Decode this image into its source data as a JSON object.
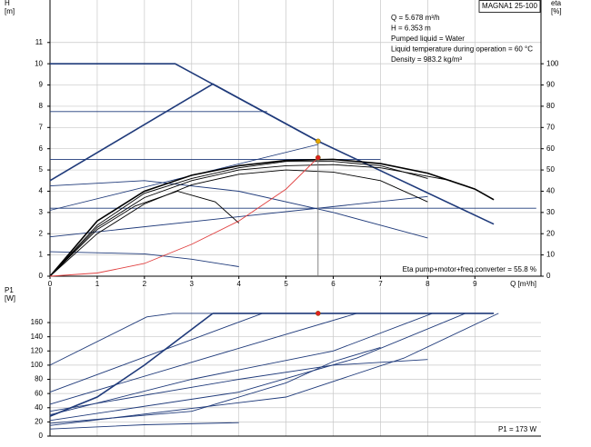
{
  "chart_data": [
    {
      "type": "line",
      "y_label": [
        "H",
        "[m]"
      ],
      "y2_label": [
        "eta",
        "[%]"
      ],
      "x_label": "Q [m³/h]",
      "product": "MAGNA1 25-100",
      "info": [
        "Q = 5.678 m³/h",
        "H = 6.353 m",
        "Pumped liquid = Water",
        "Liquid temperature during operation = 60 °C",
        "Density = 983.2 kg/m³"
      ],
      "annotation": "Eta pump+motor+freq.converter = 55.8 %",
      "xlim": [
        0,
        10.4
      ],
      "xticks": [
        0,
        1,
        2,
        3,
        4,
        5,
        6,
        7,
        8,
        9
      ],
      "ylim": [
        0,
        13
      ],
      "yticks": [
        0,
        1,
        2,
        3,
        4,
        5,
        6,
        7,
        8,
        9,
        10,
        11
      ],
      "y2lim": [
        0,
        130
      ],
      "y2ticks": [
        0,
        10,
        20,
        30,
        40,
        50,
        60,
        70,
        80,
        90,
        100
      ],
      "grid": true,
      "series": [
        {
          "color": "#1f3a7a",
          "thick": true,
          "x": [
            0,
            2.65,
            5.678,
            9.4
          ],
          "values": [
            10,
            10,
            6.353,
            2.45
          ]
        },
        {
          "color": "#1f3a7a",
          "thick": true,
          "x": [
            0,
            3.45,
            5.678
          ],
          "values": [
            4.5,
            9.05,
            6.353
          ]
        },
        {
          "color": "#1f3a7a",
          "x": [
            0,
            4.6
          ],
          "values": [
            7.75,
            7.75
          ]
        },
        {
          "color": "#1f3a7a",
          "x": [
            0,
            7.0
          ],
          "values": [
            5.5,
            5.5
          ]
        },
        {
          "color": "#1f3a7a",
          "x": [
            0,
            10.3
          ],
          "values": [
            3.2,
            3.2
          ]
        },
        {
          "color": "#1f3a7a",
          "x": [
            0,
            5.678
          ],
          "values": [
            3.1,
            6.2
          ]
        },
        {
          "color": "#1f3a7a",
          "x": [
            0,
            8.0
          ],
          "values": [
            1.85,
            3.75
          ]
        },
        {
          "color": "#1f3a7a",
          "x": [
            0,
            2,
            4,
            6,
            8
          ],
          "values": [
            4.25,
            4.5,
            4.0,
            3.0,
            1.8
          ]
        },
        {
          "color": "#1f3a7a",
          "x": [
            0,
            2,
            3,
            4
          ],
          "values": [
            1.15,
            1.05,
            0.8,
            0.45
          ]
        },
        {
          "color": "#000000",
          "thick": true,
          "x": [
            0,
            1,
            2,
            3,
            4,
            5,
            6,
            7,
            8,
            9,
            9.4
          ],
          "values": [
            0,
            2.6,
            4.0,
            4.75,
            5.2,
            5.45,
            5.5,
            5.3,
            4.85,
            4.1,
            3.6
          ]
        },
        {
          "color": "#000000",
          "x": [
            0,
            1,
            2,
            3,
            4,
            5,
            6,
            7,
            8,
            8.5
          ],
          "values": [
            0,
            2.3,
            3.7,
            4.5,
            5.0,
            5.2,
            5.25,
            5.1,
            4.7,
            4.5
          ]
        },
        {
          "color": "#000000",
          "x": [
            0,
            1,
            2,
            3,
            4,
            5,
            6,
            7,
            8
          ],
          "values": [
            0,
            2.0,
            3.4,
            4.3,
            4.8,
            5.0,
            4.9,
            4.5,
            3.5
          ]
        },
        {
          "color": "#000000",
          "x": [
            0,
            1,
            2,
            3,
            4,
            5,
            6,
            7,
            8
          ],
          "values": [
            0,
            2.4,
            3.9,
            4.6,
            5.1,
            5.4,
            5.4,
            5.2,
            4.6
          ]
        },
        {
          "color": "#000000",
          "x": [
            0,
            1,
            1.8,
            2.7,
            3.5,
            4
          ],
          "values": [
            0,
            2.2,
            3.3,
            4.0,
            3.5,
            2.5
          ]
        },
        {
          "color": "#e04040",
          "x": [
            0,
            1,
            2,
            3,
            4,
            5,
            5.678
          ],
          "values": [
            0,
            0.15,
            0.6,
            1.5,
            2.6,
            4.1,
            5.58
          ]
        },
        {
          "color": "#777777",
          "x": [
            5.678,
            5.678
          ],
          "values": [
            0,
            6.353
          ]
        },
        {
          "color": "#e6a800",
          "marker": true,
          "x": [
            5.678
          ],
          "values": [
            6.353
          ]
        },
        {
          "color": "#e02020",
          "marker": true,
          "x": [
            5.678
          ],
          "values": [
            5.58
          ]
        }
      ]
    },
    {
      "type": "line",
      "y_label": [
        "P1",
        "[W]"
      ],
      "annotation": "P1 = 173 W",
      "xlim": [
        0,
        10.4
      ],
      "xticks": [
        0,
        1,
        2,
        3,
        4,
        5,
        6,
        7,
        8,
        9
      ],
      "ylim": [
        0,
        210
      ],
      "yticks": [
        0,
        20,
        40,
        60,
        80,
        100,
        120,
        140,
        160
      ],
      "grid": true,
      "series": [
        {
          "color": "#1f3a7a",
          "x": [
            0,
            2.05,
            2.6,
            9.4
          ],
          "values": [
            100,
            168,
            173,
            173
          ]
        },
        {
          "color": "#1f3a7a",
          "thick": true,
          "x": [
            3.45,
            9.4
          ],
          "values": [
            173,
            173
          ]
        },
        {
          "color": "#1f3a7a",
          "x": [
            0,
            4.5
          ],
          "values": [
            62,
            173
          ]
        },
        {
          "color": "#1f3a7a",
          "x": [
            0,
            6.5
          ],
          "values": [
            45,
            173
          ]
        },
        {
          "color": "#1f3a7a",
          "thick": true,
          "x": [
            0,
            1,
            2,
            3.45
          ],
          "values": [
            28,
            55,
            100,
            173
          ]
        },
        {
          "color": "#1f3a7a",
          "x": [
            0,
            3,
            6,
            8.1
          ],
          "values": [
            30,
            80,
            120,
            173
          ]
        },
        {
          "color": "#1f3a7a",
          "x": [
            0,
            4,
            6.5,
            8.8
          ],
          "values": [
            22,
            62,
            110,
            173
          ]
        },
        {
          "color": "#1f3a7a",
          "x": [
            0,
            5,
            7.5,
            9.5
          ],
          "values": [
            15,
            55,
            110,
            173
          ]
        },
        {
          "color": "#1f3a7a",
          "x": [
            0,
            4,
            6,
            8
          ],
          "values": [
            35,
            80,
            100,
            108
          ]
        },
        {
          "color": "#1f3a7a",
          "x": [
            0,
            2,
            4
          ],
          "values": [
            10,
            16,
            19
          ]
        },
        {
          "color": "#1f3a7a",
          "x": [
            0,
            3,
            5,
            6,
            7
          ],
          "values": [
            18,
            35,
            75,
            105,
            125
          ]
        },
        {
          "color": "#e02020",
          "marker": true,
          "x": [
            5.678
          ],
          "values": [
            173
          ]
        }
      ]
    }
  ]
}
